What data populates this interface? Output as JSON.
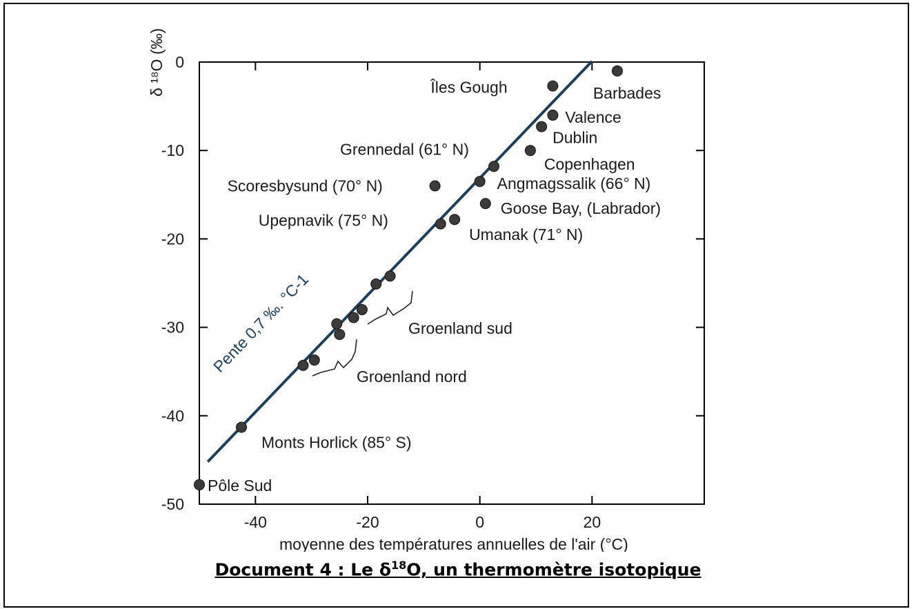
{
  "chart_data": {
    "type": "scatter",
    "title": "",
    "xlabel": "moyenne des températures annuelles de l'air (°C)",
    "ylabel": "δ ¹⁸O (‰)",
    "xlim": [
      -50,
      40
    ],
    "ylim": [
      -50,
      0
    ],
    "x_ticks": [
      -40,
      -20,
      0,
      20
    ],
    "y_ticks": [
      0,
      -10,
      -20,
      -30,
      -40,
      -50
    ],
    "grid": false,
    "points": [
      {
        "name": "Îles Gough",
        "x": 13,
        "y": -2.7
      },
      {
        "name": "Barbades",
        "x": 24.5,
        "y": -1
      },
      {
        "name": "Valence",
        "x": 13,
        "y": -6
      },
      {
        "name": "Dublin",
        "x": 11,
        "y": -7.3
      },
      {
        "name": "Copenhagen",
        "x": 9,
        "y": -10
      },
      {
        "name": "Grennedal (61° N)",
        "x": 2.5,
        "y": -11.8
      },
      {
        "name": "Scoresbysund (70° N)",
        "x": -8,
        "y": -14
      },
      {
        "name": "Angmagssalik (66° N)",
        "x": 0,
        "y": -13.5
      },
      {
        "name": "Goose Bay, (Labrador)",
        "x": 1,
        "y": -16
      },
      {
        "name": "Upepnavik (75° N)",
        "x": -7,
        "y": -18.3
      },
      {
        "name": "Umanak (71° N)",
        "x": -4.5,
        "y": -17.8
      },
      {
        "name": "",
        "x": -16,
        "y": -24.2
      },
      {
        "name": "",
        "x": -18.5,
        "y": -25.1
      },
      {
        "name": "",
        "x": -21,
        "y": -28
      },
      {
        "name": "",
        "x": -22.5,
        "y": -28.9
      },
      {
        "name": "",
        "x": -25.5,
        "y": -29.6
      },
      {
        "name": "",
        "x": -25,
        "y": -30.8
      },
      {
        "name": "",
        "x": -29.5,
        "y": -33.7
      },
      {
        "name": "",
        "x": -31.5,
        "y": -34.3
      },
      {
        "name": "Monts Horlick (85° S)",
        "x": -42.5,
        "y": -41.3
      },
      {
        "name": "Pôle Sud",
        "x": -50,
        "y": -47.8
      }
    ],
    "groups": [
      {
        "label": "Groenland sud"
      },
      {
        "label": "Groenland nord"
      }
    ],
    "trendline": {
      "label": "Pente  0,7 ‰. °C-1",
      "x": [
        -48.5,
        20
      ],
      "y": [
        -45.2,
        0.1
      ]
    }
  },
  "caption": {
    "prefix": "Document 4 : Le δ",
    "sup": "18",
    "suffix": "O, un thermomètre isotopique"
  },
  "colors": {
    "points": "#3b3b3b",
    "trendline": "#1d3f5e",
    "axis": "#000000"
  }
}
